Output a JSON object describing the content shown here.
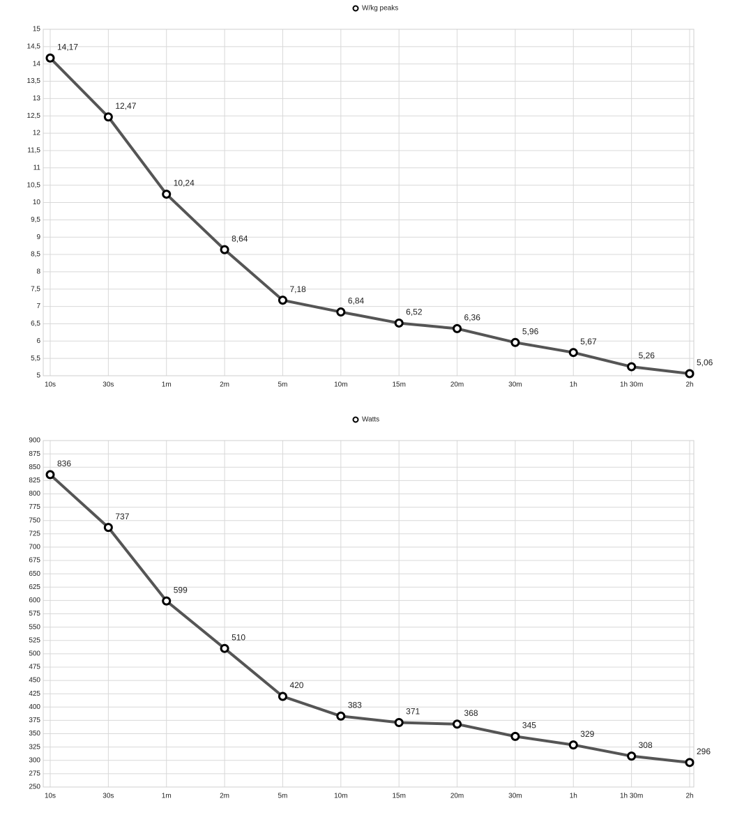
{
  "chart_data": [
    {
      "type": "line",
      "categories": [
        "10s",
        "30s",
        "1m",
        "2m",
        "5m",
        "10m",
        "15m",
        "20m",
        "30m",
        "1h",
        "1h 30m",
        "2h"
      ],
      "series": [
        {
          "name": "W/kg peaks",
          "color": "#555555",
          "values": [
            14.17,
            12.47,
            10.24,
            8.64,
            7.18,
            6.84,
            6.52,
            6.36,
            5.96,
            5.67,
            5.26,
            5.06
          ],
          "value_labels": [
            "14,17",
            "12,47",
            "10,24",
            "8,64",
            "7,18",
            "6,84",
            "6,52",
            "6,36",
            "5,96",
            "5,67",
            "5,26",
            "5,06"
          ]
        }
      ],
      "ylim": [
        5,
        15
      ],
      "yticks": [
        5,
        {
          "value": 5.5,
          "label": "5,5"
        },
        6,
        {
          "value": 6.5,
          "label": "6,5"
        },
        7,
        {
          "value": 7.5,
          "label": "7,5"
        },
        8,
        {
          "value": 8.5,
          "label": "8,5"
        },
        9,
        {
          "value": 9.5,
          "label": "9,5"
        },
        10,
        {
          "value": 10.5,
          "label": "10,5"
        },
        11,
        {
          "value": 11.5,
          "label": "11,5"
        },
        12,
        {
          "value": 12.5,
          "label": "12,5"
        },
        13,
        {
          "value": 13.5,
          "label": "13,5"
        },
        14,
        {
          "value": 14.5,
          "label": "14,5"
        },
        15
      ],
      "grid": true,
      "legend": "top"
    },
    {
      "type": "line",
      "categories": [
        "10s",
        "30s",
        "1m",
        "2m",
        "5m",
        "10m",
        "15m",
        "20m",
        "30m",
        "1h",
        "1h 30m",
        "2h"
      ],
      "series": [
        {
          "name": "Watts",
          "color": "#555555",
          "values": [
            836,
            737,
            599,
            510,
            420,
            383,
            371,
            368,
            345,
            329,
            308,
            296
          ]
        }
      ],
      "ylim": [
        250,
        900
      ],
      "yticks": [
        250,
        275,
        300,
        325,
        350,
        375,
        400,
        425,
        450,
        475,
        500,
        525,
        550,
        575,
        600,
        625,
        650,
        675,
        700,
        725,
        750,
        775,
        800,
        825,
        850,
        875,
        900
      ],
      "grid": true,
      "legend": "top"
    }
  ]
}
